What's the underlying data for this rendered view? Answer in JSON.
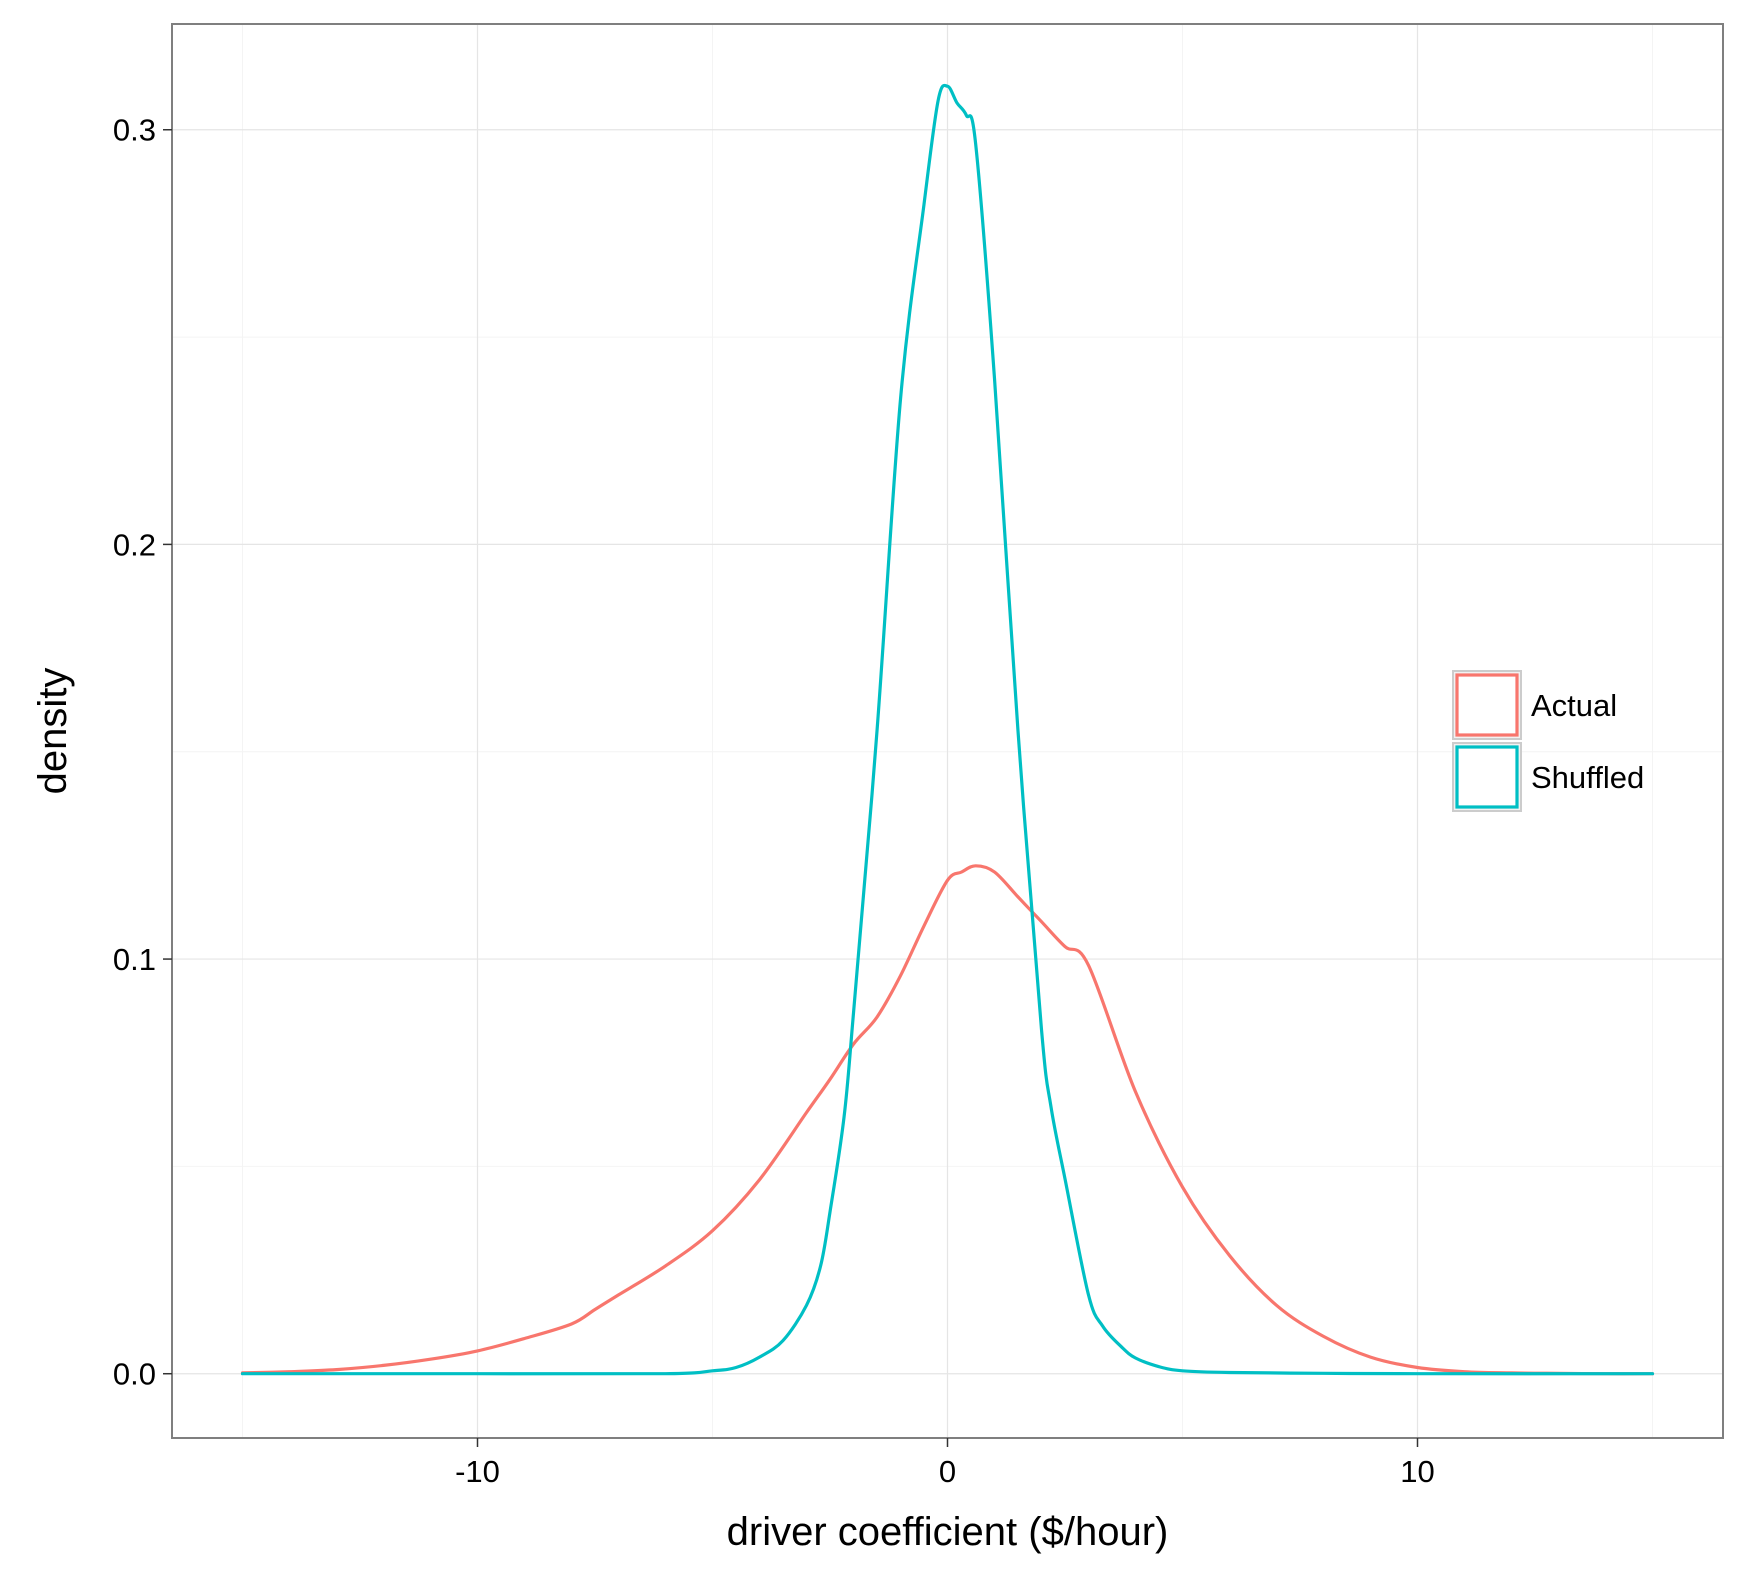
{
  "chart_data": {
    "type": "line",
    "title": "",
    "xlabel": "driver coefficient ($/hour)",
    "ylabel": "density",
    "xlim": [
      -16.5,
      16.5
    ],
    "ylim": [
      -0.0155,
      0.3255
    ],
    "x_ticks": [
      -10,
      0,
      10
    ],
    "x_tick_labels": [
      "-10",
      "0",
      "10"
    ],
    "y_ticks": [
      0.0,
      0.1,
      0.2,
      0.3
    ],
    "y_tick_labels": [
      "0.0",
      "0.1",
      "0.2",
      "0.3"
    ],
    "grid": true,
    "legend": {
      "placement": "right",
      "entries": [
        "Actual",
        "Shuffled"
      ]
    },
    "series": [
      {
        "name": "Actual",
        "color": "#F8766D",
        "x": [
          -15,
          -14,
          -13,
          -12,
          -11,
          -10,
          -9,
          -8,
          -7.5,
          -7,
          -6,
          -5,
          -4,
          -3,
          -2.5,
          -2,
          -1.5,
          -1,
          -0.5,
          0,
          0.3,
          0.6,
          1,
          1.5,
          2,
          2.5,
          3,
          4,
          5,
          6,
          7,
          8,
          9,
          10,
          11,
          12,
          13,
          14,
          15
        ],
        "y": [
          0.0002,
          0.0005,
          0.001,
          0.002,
          0.0035,
          0.0055,
          0.0085,
          0.012,
          0.0155,
          0.019,
          0.026,
          0.0345,
          0.0468,
          0.063,
          0.071,
          0.0795,
          0.086,
          0.096,
          0.108,
          0.119,
          0.121,
          0.1225,
          0.121,
          0.115,
          0.109,
          0.103,
          0.0985,
          0.068,
          0.045,
          0.0285,
          0.0165,
          0.009,
          0.004,
          0.0015,
          0.0005,
          0.0002,
          0.0001,
          0.0,
          0.0
        ]
      },
      {
        "name": "Shuffled",
        "color": "#00BFC4",
        "x": [
          -15,
          -10,
          -6,
          -5,
          -4.5,
          -4,
          -3.5,
          -3,
          -2.7,
          -2.5,
          -2.2,
          -2,
          -1.5,
          -1,
          -0.5,
          -0.2,
          0,
          0.2,
          0.4,
          0.6,
          1,
          1.5,
          2,
          2.2,
          2.5,
          3,
          3.3,
          3.7,
          4,
          4.5,
          5,
          6,
          8,
          10,
          15
        ],
        "y": [
          0.0,
          0.0,
          0.0,
          0.0007,
          0.0015,
          0.004,
          0.008,
          0.0165,
          0.026,
          0.039,
          0.062,
          0.087,
          0.155,
          0.235,
          0.282,
          0.307,
          0.3105,
          0.3065,
          0.3035,
          0.2965,
          0.24,
          0.155,
          0.083,
          0.0645,
          0.047,
          0.019,
          0.0115,
          0.0065,
          0.0038,
          0.0017,
          0.0007,
          0.0003,
          0.0001,
          0.0,
          0.0
        ]
      }
    ]
  }
}
